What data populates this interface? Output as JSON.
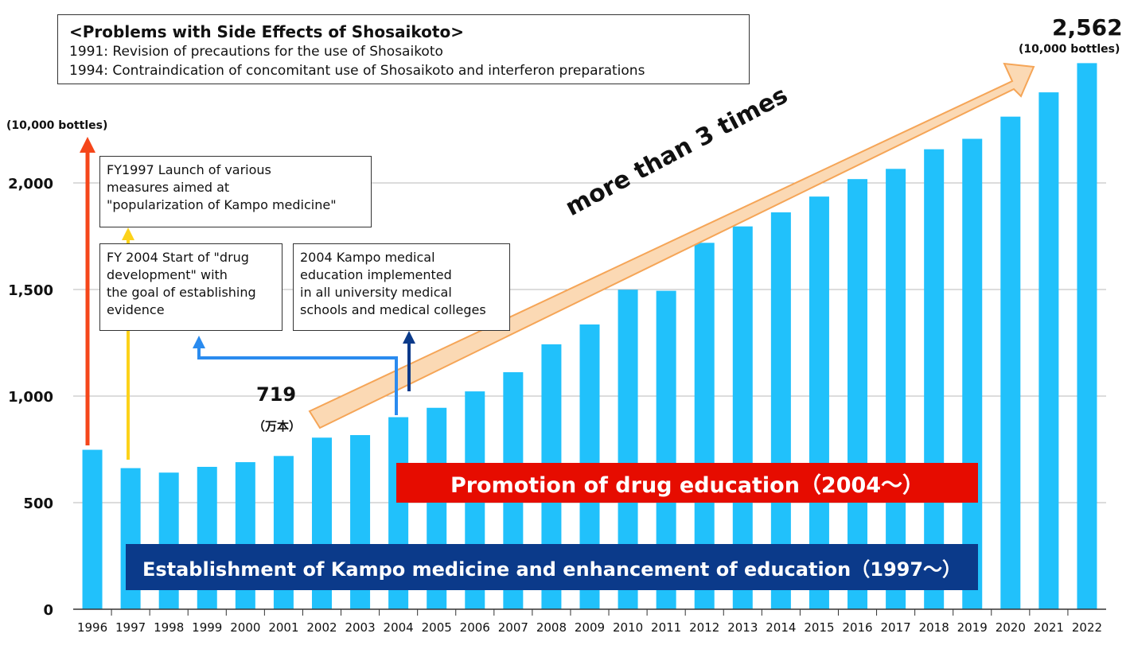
{
  "chart_data": {
    "type": "bar",
    "categories": [
      "1996",
      "1997",
      "1998",
      "1999",
      "2000",
      "2001",
      "2002",
      "2003",
      "2004",
      "2005",
      "2006",
      "2007",
      "2008",
      "2009",
      "2010",
      "2011",
      "2012",
      "2013",
      "2014",
      "2015",
      "2016",
      "2017",
      "2018",
      "2019",
      "2020",
      "2021",
      "2022"
    ],
    "values": [
      748,
      662,
      641,
      668,
      690,
      719,
      805,
      817,
      901,
      945,
      1022,
      1112,
      1243,
      1336,
      1499,
      1494,
      1719,
      1796,
      1862,
      1936,
      2018,
      2066,
      2158,
      2207,
      2311,
      2425,
      2562
    ],
    "ylabel": "(10,000 bottles)",
    "yticks": [
      "0",
      "500",
      "1,000",
      "1,500",
      "2,000"
    ],
    "ylim": [
      0,
      2600
    ],
    "grid": true,
    "bar_color": "#21c1fb"
  },
  "problems_box": {
    "title": "<Problems with Side Effects of Shosaikoto>",
    "line1": "1991: Revision of precautions for the use of Shosaikoto",
    "line2": "1994: Contraindication of concomitant use of Shosaikoto and interferon preparations"
  },
  "note_1997": {
    "line1": "FY1997 Launch of various",
    "line2": "measures aimed at",
    "line3": "\"popularization of Kampo medicine\""
  },
  "note_2004_drug": {
    "line1": "FY 2004 Start of \"drug",
    "line2": "development\" with",
    "line3": "the goal of establishing",
    "line4": "evidence"
  },
  "note_2004_edu": {
    "line1": "2004 Kampo medical",
    "line2": "education implemented",
    "line3": "in all university medical",
    "line4": "schools and medical colleges"
  },
  "annotations": {
    "first_value": "719",
    "first_unit": "（万本）",
    "last_value": "2,562",
    "last_unit": "(10,000 bottles)",
    "growth_label": "more than 3 times"
  },
  "banners": {
    "drug_education": "Promotion of drug education（2004～）",
    "kampo_education": "Establishment of Kampo medicine and enhancement of education（1997～）"
  },
  "colors": {
    "bar": "#21c1fb",
    "arrow_orange": "#f5461a",
    "arrow_yellow": "#fcd21a",
    "arrow_blue": "#2a8bef",
    "arrow_navy": "#0b3a8a",
    "banner_red": "#e60c00",
    "banner_navy": "#0b3a8a",
    "growth_arrow_fill": "#fbd9b4",
    "growth_arrow_stroke": "#f5a557"
  }
}
